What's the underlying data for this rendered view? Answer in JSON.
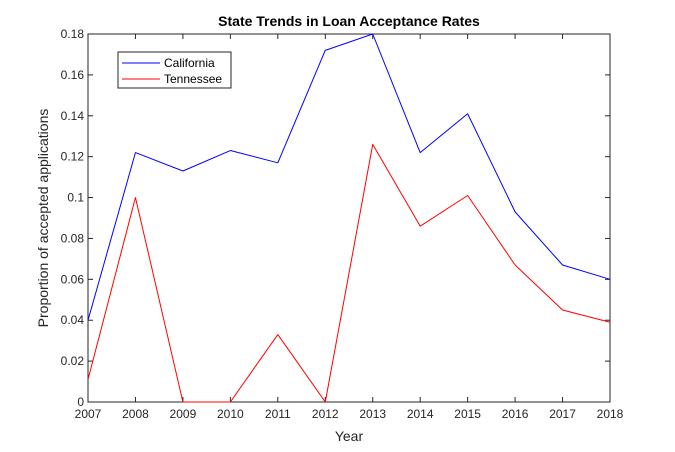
{
  "chart_data": {
    "type": "line",
    "title": "State Trends in Loan Acceptance Rates",
    "xlabel": "Year",
    "ylabel": "Proportion of accepted applications",
    "x": [
      2007,
      2008,
      2009,
      2010,
      2011,
      2012,
      2013,
      2014,
      2015,
      2016,
      2017,
      2018
    ],
    "xlim": [
      2007,
      2018
    ],
    "ylim": [
      0,
      0.18
    ],
    "xticks": [
      "2007",
      "2008",
      "2009",
      "2010",
      "2011",
      "2012",
      "2013",
      "2014",
      "2015",
      "2016",
      "2017",
      "2018"
    ],
    "yticks": [
      "0",
      "0.02",
      "0.04",
      "0.06",
      "0.08",
      "0.1",
      "0.12",
      "0.14",
      "0.16",
      "0.18"
    ],
    "grid": false,
    "legend_position": "top-left",
    "series": [
      {
        "name": "California",
        "color": "#0000ff",
        "values": [
          0.04,
          0.122,
          0.113,
          0.123,
          0.117,
          0.172,
          0.18,
          0.122,
          0.141,
          0.093,
          0.067,
          0.06
        ]
      },
      {
        "name": "Tennessee",
        "color": "#ff0000",
        "values": [
          0.011,
          0.1,
          0.0,
          0.0,
          0.033,
          0.0,
          0.126,
          0.086,
          0.101,
          0.067,
          0.045,
          0.039
        ]
      }
    ]
  }
}
